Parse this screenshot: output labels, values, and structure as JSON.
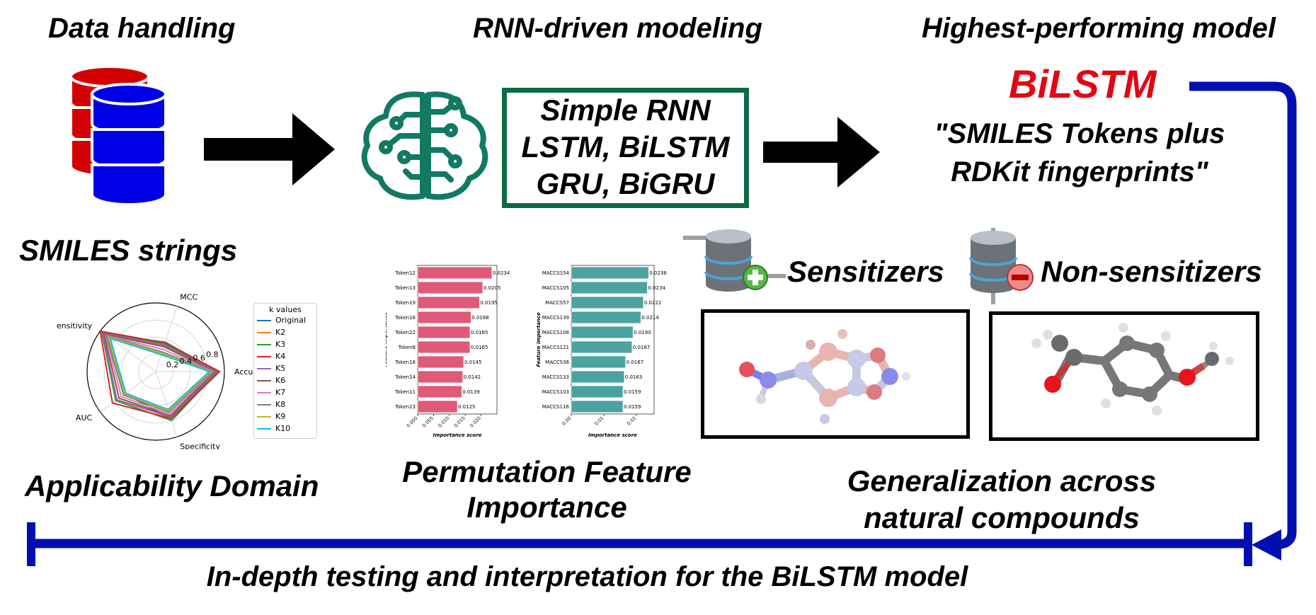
{
  "colors": {
    "accent_red": "#e30613",
    "db_red": "#d40000",
    "db_blue": "#0000e6",
    "brain_green": "#127a63",
    "box_green": "#0b6b43",
    "arrow_blue": "#0010b0",
    "bar_pink": "#e05a78",
    "bar_teal": "#4aa3a0"
  },
  "sections": {
    "data_handling": "Data handling",
    "rnn_modeling": "RNN-driven modeling",
    "highest_model": "Highest-performing model"
  },
  "models_box": {
    "lines": [
      "Simple RNN",
      "LSTM, BiLSTM",
      "GRU, BiGRU"
    ]
  },
  "best_model": {
    "name": "BiLSTM",
    "description_lines": [
      "\"SMILES Tokens plus",
      "RDKit fingerprints\""
    ]
  },
  "smiles_label": "SMILES strings",
  "applicability_label": "Applicability Domain",
  "pfi_label_lines": [
    "Permutation Feature",
    "Importance"
  ],
  "generalization_label_lines": [
    "Generalization across",
    "natural compounds"
  ],
  "bottom_label": "In-depth testing and interpretation for the BiLSTM model",
  "sensitizers_label": "Sensitizers",
  "non_sensitizers_label": "Non-sensitizers",
  "icons": {
    "database": "database-icon",
    "brain": "brain-circuit-icon",
    "plus": "plus-icon",
    "minus": "minus-icon"
  },
  "chart_data": [
    {
      "type": "radar",
      "axes": [
        "MCC",
        "Accuracy",
        "Specificity",
        "AUC",
        "Sensitivity"
      ],
      "radial_ticks": [
        "0.2",
        "0.4",
        "0.6",
        "0.8"
      ],
      "legend_title": "k values",
      "series": [
        {
          "name": "Original",
          "color": "#1f77b4",
          "values": [
            0.45,
            0.9,
            0.72,
            0.55,
            0.92
          ]
        },
        {
          "name": "K2",
          "color": "#ff7f0e",
          "values": [
            0.4,
            0.88,
            0.68,
            0.7,
            0.95
          ]
        },
        {
          "name": "K3",
          "color": "#2ca02c",
          "values": [
            0.42,
            0.9,
            0.75,
            0.72,
            0.97
          ]
        },
        {
          "name": "K4",
          "color": "#d62728",
          "values": [
            0.44,
            0.93,
            0.72,
            0.78,
            1.0
          ]
        },
        {
          "name": "K5",
          "color": "#9467bd",
          "values": [
            0.4,
            0.88,
            0.7,
            0.7,
            0.95
          ]
        },
        {
          "name": "K6",
          "color": "#8c564b",
          "values": [
            0.38,
            0.86,
            0.68,
            0.66,
            0.93
          ]
        },
        {
          "name": "K7",
          "color": "#e377c2",
          "values": [
            0.34,
            0.84,
            0.65,
            0.62,
            0.9
          ]
        },
        {
          "name": "K8",
          "color": "#7f7f7f",
          "values": [
            0.3,
            0.82,
            0.62,
            0.58,
            0.88
          ]
        },
        {
          "name": "K9",
          "color": "#bcbd22",
          "values": [
            0.28,
            0.8,
            0.6,
            0.56,
            0.85
          ]
        },
        {
          "name": "K10",
          "color": "#17becf",
          "values": [
            0.26,
            0.78,
            0.58,
            0.54,
            0.82
          ]
        }
      ]
    },
    {
      "type": "bar",
      "orientation": "horizontal",
      "categories": [
        "Token12",
        "Token13",
        "Token19",
        "Token16",
        "Token22",
        "Token8",
        "Token18",
        "Token14",
        "Token11",
        "Token23"
      ],
      "values": [
        0.0234,
        0.0205,
        0.0195,
        0.0168,
        0.0165,
        0.0165,
        0.0145,
        0.0142,
        0.0139,
        0.0125
      ],
      "value_labels": [
        "0.0234",
        "0.0205",
        "0.0195",
        "0.0168",
        "0.0165",
        "0.0165",
        "0.0145",
        "0.0142",
        "0.0139",
        "0.0125"
      ],
      "xticks": [
        "0.000",
        "0.005",
        "0.010",
        "0.015",
        "0.020"
      ],
      "xlim": [
        0,
        0.025
      ],
      "xlabel": "Importance score",
      "ylabel": "Feature importance"
    },
    {
      "type": "bar",
      "orientation": "horizontal",
      "categories": [
        "MACCS154",
        "MACCS105",
        "MACCS57",
        "MACCS139",
        "MACCS108",
        "MACCS121",
        "MACCS38",
        "MACCS133",
        "MACCS103",
        "MACCS116"
      ],
      "values": [
        0.0238,
        0.0234,
        0.0222,
        0.0214,
        0.019,
        0.0187,
        0.0167,
        0.0163,
        0.0159,
        0.0159
      ],
      "value_labels": [
        "0.0238",
        "0.0234",
        "0.0222",
        "0.0214",
        "0.0190",
        "0.0187",
        "0.0167",
        "0.0163",
        "0.0159",
        "0.0159"
      ],
      "xticks": [
        "0.00",
        "0.01",
        "0.02"
      ],
      "xlim": [
        0,
        0.0255
      ],
      "xlabel": "Importance score",
      "ylabel": "Feature importance"
    }
  ]
}
